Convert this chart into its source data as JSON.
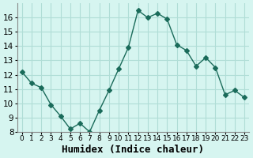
{
  "x": [
    0,
    1,
    2,
    3,
    4,
    5,
    6,
    7,
    8,
    9,
    10,
    11,
    12,
    13,
    14,
    15,
    16,
    17,
    18,
    19,
    20,
    21,
    22,
    23
  ],
  "y": [
    12.2,
    11.4,
    11.1,
    9.9,
    9.1,
    8.2,
    8.6,
    8.0,
    9.5,
    10.9,
    12.4,
    13.9,
    16.5,
    16.0,
    16.3,
    15.9,
    14.1,
    13.7,
    12.6,
    13.2,
    12.5,
    10.6,
    10.9,
    10.4
  ],
  "xlabel": "Humidex (Indice chaleur)",
  "ylim": [
    8,
    17
  ],
  "xlim": [
    -0.5,
    23.5
  ],
  "yticks": [
    8,
    9,
    10,
    11,
    12,
    13,
    14,
    15,
    16
  ],
  "xticks": [
    0,
    1,
    2,
    3,
    4,
    5,
    6,
    7,
    8,
    9,
    10,
    11,
    12,
    13,
    14,
    15,
    16,
    17,
    18,
    19,
    20,
    21,
    22,
    23
  ],
  "line_color": "#1a6b5a",
  "marker": "D",
  "marker_size": 3,
  "bg_color": "#d6f5f0",
  "grid_color": "#b0ddd6",
  "xlabel_fontsize": 9,
  "tick_fontsize": 7.5
}
